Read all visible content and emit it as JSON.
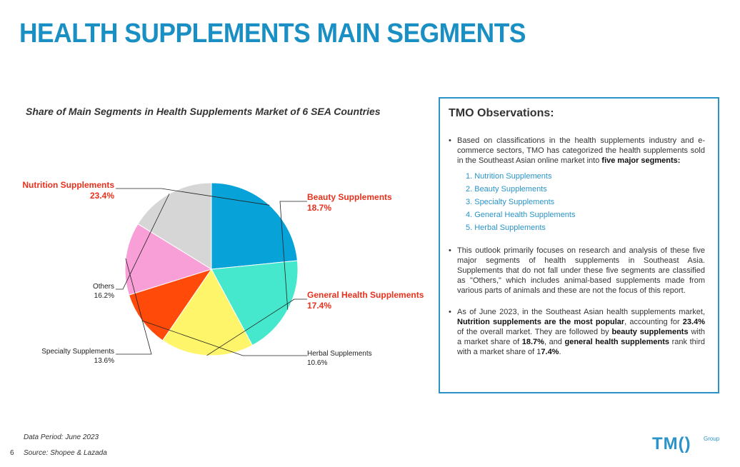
{
  "page": {
    "title": "HEALTH SUPPLEMENTS MAIN SEGMENTS",
    "page_number": "6"
  },
  "chart_data": {
    "type": "pie",
    "title": "Share of Main Segments in Health Supplements Market of 6 SEA Countries",
    "categories": [
      "Nutrition Supplements",
      "Beauty Supplements",
      "General Health Supplements",
      "Herbal Supplements",
      "Specialty Supplements",
      "Others"
    ],
    "values": [
      23.4,
      18.7,
      17.4,
      10.6,
      13.6,
      16.2
    ],
    "value_labels": [
      "23.4%",
      "18.7%",
      "17.4%",
      "10.6%",
      "13.6%",
      "16.2%"
    ],
    "colors": [
      "#06a2d8",
      "#45e8cc",
      "#fff56a",
      "#ff4a0a",
      "#f79fd6",
      "#d6d6d6"
    ],
    "start_angle_deg": 0,
    "direction": "clockwise",
    "highlighted_label_color": "#e8301c"
  },
  "observations": {
    "title": "TMO Observations:",
    "p1_text": "Based on classifications in the health supplements industry and e-commerce sectors, TMO has categorized the health supplements sold in the Southeast Asian online market into ",
    "p1_bold": "five major segments:",
    "segments": [
      "1.  Nutrition Supplements",
      "2.  Beauty Supplements",
      "3.  Specialty Supplements",
      "4.  General Health Supplements",
      "5.  Herbal Supplements"
    ],
    "p2": "This outlook primarily focuses on research and analysis of these five major segments of health supplements in Southeast Asia. Supplements that do not fall under these five segments are classified as \"Others,\" which includes animal-based supplements made from various parts of animals and these are not the focus of this report.",
    "p3_a": "As of June 2023, in the Southeast Asian health supplements market, ",
    "p3_b": "Nutrition supplements are the most popular",
    "p3_c": ", accounting for ",
    "p3_d": "23.4%",
    "p3_e": " of the overall market. They are followed by ",
    "p3_f": "beauty supplements",
    "p3_g": " with a market share of ",
    "p3_h": "18.7%",
    "p3_i": ", and ",
    "p3_j": "general health supplements",
    "p3_k": " rank third with a market share of 1",
    "p3_l": "7.4%",
    "p3_m": "."
  },
  "footer": {
    "period": "Data Period:  June 2023",
    "source": "Source:  Shopee & Lazada"
  },
  "logo": {
    "main": "TM()",
    "sub": "Group"
  },
  "colors": {
    "accent": "#2a94c8",
    "title": "#1a8fc4",
    "highlight": "#e8301c"
  }
}
